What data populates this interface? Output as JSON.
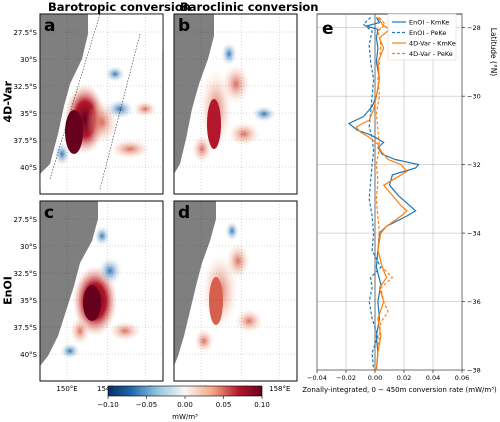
{
  "column_titles": [
    "Barotropic conversion",
    "Baroclinic conversion"
  ],
  "row_labels": [
    "4D-Var",
    "EnOI"
  ],
  "panel_letters": [
    "a",
    "b",
    "c",
    "d",
    "e"
  ],
  "map_yticks": [
    "27.5°S",
    "30°S",
    "32.5°S",
    "35°S",
    "37.5°S",
    "40°S"
  ],
  "map_xticks": [
    "150°E",
    "154°E",
    "158°E"
  ],
  "colorbar": {
    "ticks": [
      "−0.10",
      "−0.05",
      "0.00",
      "0.05",
      "0.10"
    ],
    "label": "mW/m³",
    "colors": {
      "neg": "#2166ac",
      "mid": "#f7f7f7",
      "pos": "#67001f"
    }
  },
  "chart_data": {
    "type": "line",
    "panel": "e",
    "xlabel": "Zonally-integrated, 0 − 450m conversion rate (mW/m³)",
    "ylabel": "Latitude (°N)",
    "xlim": [
      -0.04,
      0.06
    ],
    "ylim": [
      -38,
      -27.6
    ],
    "xticks": [
      "−0.04",
      "−0.02",
      "0.00",
      "0.02",
      "0.04",
      "0.06"
    ],
    "yticks": [
      "−28",
      "−30",
      "−32",
      "−34",
      "−36",
      "−38"
    ],
    "ytick_values": [
      -28,
      -30,
      -32,
      -34,
      -36,
      -38
    ],
    "xtick_values": [
      -0.04,
      -0.02,
      0.0,
      0.02,
      0.04,
      0.06
    ],
    "grid": true,
    "legend_position": "top-right",
    "series": [
      {
        "name": "EnOI - KmKe",
        "color": "#1f77b4",
        "dash": "solid",
        "y": [
          -27.7,
          -27.85,
          -27.95,
          -28.05,
          -28.3,
          -28.6,
          -29.0,
          -29.5,
          -30.0,
          -30.3,
          -30.6,
          -30.8,
          -31.0,
          -31.1,
          -31.2,
          -31.35,
          -31.5,
          -31.7,
          -31.85,
          -32.0,
          -32.1,
          -32.3,
          -32.6,
          -32.9,
          -33.2,
          -33.35,
          -33.5,
          -33.8,
          -34.0,
          -34.5,
          -35.0,
          -35.5,
          -36.0,
          -36.5,
          -37.0,
          -37.5,
          -38.0
        ],
        "x": [
          0.001,
          0.003,
          -0.006,
          0.002,
          0.001,
          0.002,
          0.001,
          0.003,
          0.001,
          -0.002,
          -0.008,
          -0.018,
          -0.012,
          -0.005,
          0.0,
          0.006,
          0.002,
          0.005,
          0.014,
          0.03,
          0.028,
          0.012,
          0.01,
          0.016,
          0.024,
          0.028,
          0.022,
          0.008,
          0.003,
          0.002,
          0.001,
          0.004,
          0.002,
          0.003,
          0.001,
          0.002,
          0.001
        ]
      },
      {
        "name": "EnOI - PeKe",
        "color": "#1f77b4",
        "dash": "dashed",
        "y": [
          -27.7,
          -27.9,
          -28.1,
          -28.5,
          -29.0,
          -29.5,
          -30.0,
          -30.5,
          -30.9,
          -31.2,
          -31.6,
          -32.0,
          -32.5,
          -33.0,
          -33.5,
          -34.0,
          -34.5,
          -35.0,
          -35.3,
          -35.6,
          -36.0,
          -36.5,
          -37.0,
          -37.5,
          -38.0
        ],
        "x": [
          -0.003,
          -0.008,
          -0.002,
          -0.004,
          -0.003,
          -0.001,
          -0.002,
          -0.003,
          -0.004,
          -0.002,
          -0.001,
          -0.002,
          -0.003,
          -0.004,
          -0.002,
          -0.001,
          -0.002,
          0.004,
          -0.003,
          -0.002,
          -0.004,
          -0.002,
          0.002,
          -0.002,
          -0.001
        ]
      },
      {
        "name": "4D-Var - KmKe",
        "color": "#ff7f0e",
        "dash": "solid",
        "y": [
          -27.7,
          -27.9,
          -28.05,
          -28.3,
          -28.6,
          -29.0,
          -29.5,
          -30.0,
          -30.4,
          -30.7,
          -30.9,
          -31.05,
          -31.2,
          -31.4,
          -31.6,
          -31.85,
          -32.0,
          -32.2,
          -32.4,
          -32.6,
          -32.9,
          -33.2,
          -33.35,
          -33.5,
          -33.8,
          -34.0,
          -34.5,
          -35.0,
          -35.3,
          -35.6,
          -36.0,
          -36.5,
          -37.0,
          -37.5,
          -38.0
        ],
        "x": [
          0.002,
          0.005,
          0.01,
          0.003,
          0.006,
          0.002,
          0.003,
          0.001,
          -0.001,
          -0.004,
          -0.013,
          -0.01,
          -0.004,
          0.002,
          0.004,
          0.009,
          0.018,
          0.022,
          0.014,
          0.006,
          0.012,
          0.018,
          0.022,
          0.018,
          0.008,
          0.004,
          0.002,
          0.005,
          0.008,
          0.003,
          0.006,
          0.002,
          0.004,
          0.002,
          0.001
        ]
      },
      {
        "name": "4D-Var - PeKe",
        "color": "#ff7f0e",
        "dash": "dashed",
        "y": [
          -27.7,
          -27.9,
          -28.1,
          -28.5,
          -29.0,
          -29.5,
          -30.0,
          -30.5,
          -31.0,
          -31.5,
          -32.0,
          -32.5,
          -33.0,
          -33.5,
          -34.0,
          -34.5,
          -35.0,
          -35.3,
          -35.6,
          -36.0,
          -36.3,
          -36.6,
          -37.0,
          -37.5,
          -38.0
        ],
        "x": [
          0.003,
          0.007,
          0.002,
          0.004,
          0.003,
          0.002,
          0.003,
          0.001,
          0.002,
          0.003,
          0.001,
          0.002,
          0.001,
          0.002,
          0.003,
          0.002,
          0.005,
          0.012,
          0.004,
          0.006,
          0.009,
          0.004,
          0.003,
          0.002,
          0.001
        ]
      }
    ]
  }
}
